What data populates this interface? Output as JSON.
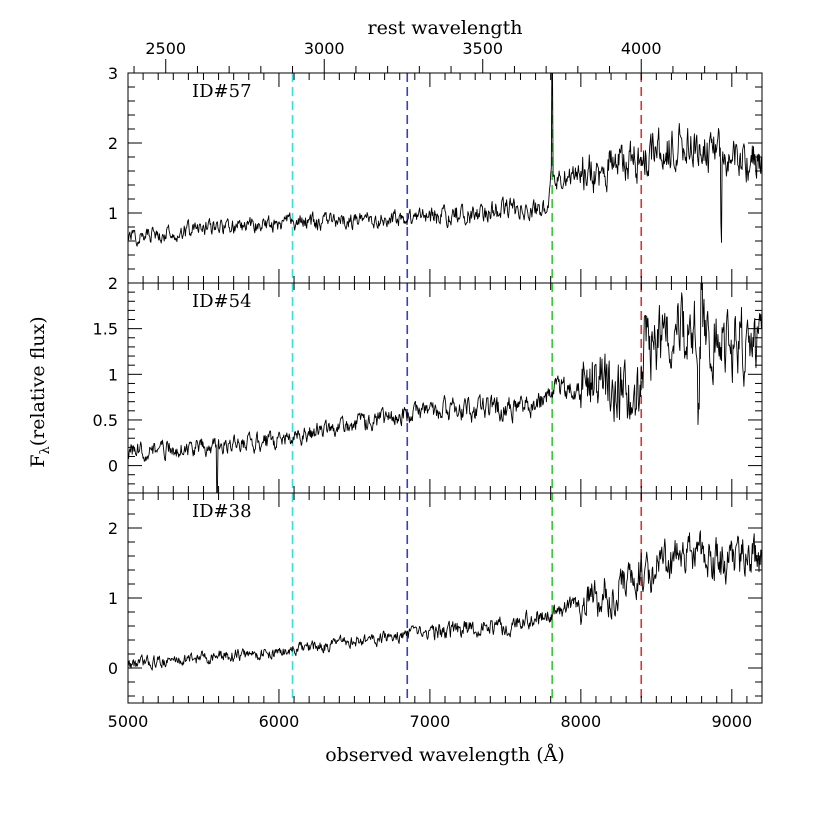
{
  "chart_data": {
    "type": "line",
    "xlabel": "observed wavelength (Å)",
    "ylabel_main": "F",
    "ylabel_sub": "λ",
    "ylabel_rest": "(relative flux)",
    "top_xlabel": "rest wavelength",
    "xlim": [
      5000,
      9200
    ],
    "x_ticks": [
      5000,
      6000,
      7000,
      8000,
      9000
    ],
    "rest_ticks": [
      2500,
      3000,
      3500,
      4000
    ],
    "redshift": 1.1,
    "reference_lines": [
      {
        "x": 6090,
        "color": "#33e0e0"
      },
      {
        "x": 6850,
        "color": "#3a3ad0"
      },
      {
        "x": 7810,
        "color": "#33cc33"
      },
      {
        "x": 8400,
        "color": "#dd3333"
      }
    ],
    "panels": [
      {
        "label": "ID#57",
        "ylim": [
          0.0,
          3.0
        ],
        "y_ticks": [
          1,
          2,
          3
        ],
        "y_tick_labels": [
          "1",
          "2",
          "3"
        ],
        "seed": 57,
        "anchors": [
          [
            5000,
            0.65
          ],
          [
            5500,
            0.78
          ],
          [
            6000,
            0.85
          ],
          [
            6500,
            0.9
          ],
          [
            7000,
            0.95
          ],
          [
            7500,
            1.05
          ],
          [
            7780,
            1.05
          ],
          [
            7800,
            1.5
          ],
          [
            8000,
            1.55
          ],
          [
            8400,
            1.8
          ],
          [
            8700,
            2.0
          ],
          [
            9000,
            1.8
          ],
          [
            9200,
            1.7
          ]
        ],
        "spikes": [
          [
            7810,
            1.5
          ],
          [
            8930,
            -1.1
          ]
        ],
        "noise": [
          0.09,
          0.12,
          0.24
        ]
      },
      {
        "label": "ID#54",
        "ylim": [
          -0.3,
          2.0
        ],
        "y_ticks": [
          0,
          0.5,
          1,
          1.5,
          2
        ],
        "y_tick_labels": [
          "0",
          "0.5",
          "1",
          "1.5",
          "2"
        ],
        "seed": 54,
        "anchors": [
          [
            5000,
            0.15
          ],
          [
            5500,
            0.2
          ],
          [
            6000,
            0.28
          ],
          [
            6500,
            0.45
          ],
          [
            7000,
            0.6
          ],
          [
            7500,
            0.62
          ],
          [
            7700,
            0.68
          ],
          [
            7800,
            0.8
          ],
          [
            8000,
            0.85
          ],
          [
            8390,
            0.8
          ],
          [
            8420,
            1.3
          ],
          [
            8700,
            1.5
          ],
          [
            9000,
            1.35
          ],
          [
            9200,
            1.4
          ]
        ],
        "spikes": [
          [
            5590,
            -0.55
          ],
          [
            8780,
            -1.0
          ],
          [
            8800,
            0.55
          ]
        ],
        "noise": [
          0.08,
          0.1,
          0.3
        ]
      },
      {
        "label": "ID#38",
        "ylim": [
          -0.5,
          2.5
        ],
        "y_ticks": [
          0,
          1,
          2
        ],
        "y_tick_labels": [
          "0",
          "1",
          "2"
        ],
        "seed": 38,
        "anchors": [
          [
            5000,
            0.05
          ],
          [
            5500,
            0.15
          ],
          [
            6000,
            0.22
          ],
          [
            6500,
            0.38
          ],
          [
            7000,
            0.5
          ],
          [
            7500,
            0.6
          ],
          [
            8000,
            0.9
          ],
          [
            8300,
            1.2
          ],
          [
            8500,
            1.45
          ],
          [
            8800,
            1.6
          ],
          [
            9200,
            1.55
          ]
        ],
        "spikes": [
          [
            8930,
            0.8
          ],
          [
            8930,
            -0.9
          ]
        ],
        "noise": [
          0.07,
          0.1,
          0.24
        ]
      }
    ]
  }
}
